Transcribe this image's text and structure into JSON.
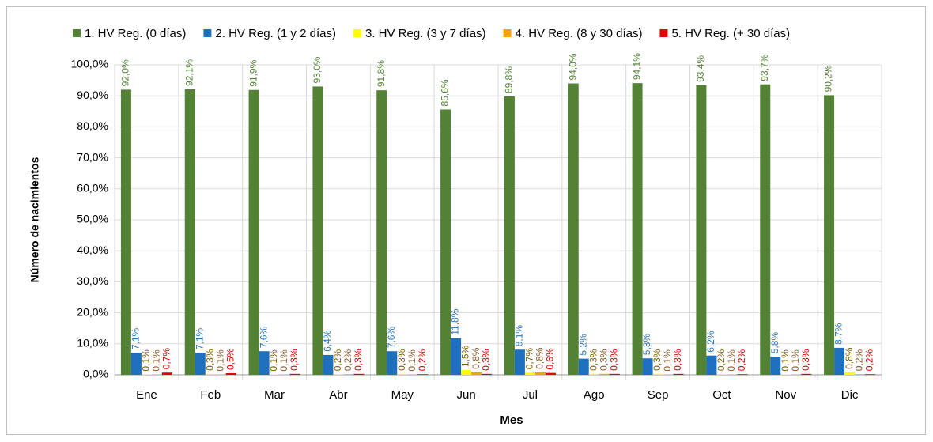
{
  "chart_data": {
    "type": "bar",
    "y_label": "Número de nacimientos",
    "x_label": "Mes",
    "categories": [
      "Ene",
      "Feb",
      "Mar",
      "Abr",
      "May",
      "Jun",
      "Jul",
      "Ago",
      "Sep",
      "Oct",
      "Nov",
      "Dic"
    ],
    "series": [
      {
        "name": "1. HV Reg. (0 días)",
        "color": "#548235",
        "label_color": "#548235",
        "values": [
          92.0,
          92.1,
          91.9,
          93.0,
          91.8,
          85.6,
          89.8,
          94.0,
          94.1,
          93.4,
          93.7,
          90.2
        ],
        "value_labels": [
          "92,0%",
          "92,1%",
          "91,9%",
          "93,0%",
          "91,8%",
          "85,6%",
          "89,8%",
          "94,0%",
          "94,1%",
          "93,4%",
          "93,7%",
          "90,2%"
        ]
      },
      {
        "name": "2. HV Reg. (1 y 2 días)",
        "color": "#1f6fbf",
        "label_color": "#2e75b6",
        "values": [
          7.1,
          7.1,
          7.6,
          6.4,
          7.6,
          11.8,
          8.1,
          5.2,
          5.3,
          6.2,
          5.8,
          8.7
        ],
        "value_labels": [
          "7,1%",
          "7,1%",
          "7,6%",
          "6,4%",
          "7,6%",
          "11,8%",
          "8,1%",
          "5,2%",
          "5,3%",
          "6,2%",
          "5,8%",
          "8,7%"
        ]
      },
      {
        "name": "3. HV Reg. (3 y 7 días)",
        "color": "#ffff00",
        "label_color": "#7f6000",
        "values": [
          0.1,
          0.3,
          0.1,
          0.2,
          0.3,
          1.5,
          0.7,
          0.3,
          0.3,
          0.2,
          0.1,
          0.8
        ],
        "value_labels": [
          "0,1%",
          "0,3%",
          "0,1%",
          "0,2%",
          "0,3%",
          "1,5%",
          "0,7%",
          "0,3%",
          "0,3%",
          "0,2%",
          "0,1%",
          "0,8%"
        ]
      },
      {
        "name": "4. HV Reg. (8 y 30 días)",
        "color": "#f5a300",
        "label_color": "#8b5a2b",
        "values": [
          0.1,
          0.1,
          0.1,
          0.2,
          0.1,
          0.8,
          0.8,
          0.3,
          0.1,
          0.1,
          0.1,
          0.2
        ],
        "value_labels": [
          "0,1%",
          "0,1%",
          "0,1%",
          "0,2%",
          "0,1%",
          "0,8%",
          "0,8%",
          "0,3%",
          "0,1%",
          "0,1%",
          "0,1%",
          "0,2%"
        ]
      },
      {
        "name": "5. HV Reg. (+ 30 días)",
        "color": "#e00000",
        "label_color": "#e00000",
        "values": [
          0.7,
          0.5,
          0.3,
          0.3,
          0.2,
          0.3,
          0.6,
          0.3,
          0.3,
          0.2,
          0.3,
          0.2
        ],
        "value_labels": [
          "0,7%",
          "0,5%",
          "0,3%",
          "0,3%",
          "0,2%",
          "0,3%",
          "0,6%",
          "0,3%",
          "0,3%",
          "0,2%",
          "0,3%",
          "0,2%"
        ]
      }
    ],
    "ylim": [
      0,
      100
    ],
    "yticks": [
      {
        "value": 0,
        "label": "0,0%"
      },
      {
        "value": 10,
        "label": "10,0%"
      },
      {
        "value": 20,
        "label": "20,0%"
      },
      {
        "value": 30,
        "label": "30,0%"
      },
      {
        "value": 40,
        "label": "40,0%"
      },
      {
        "value": 50,
        "label": "50,0%"
      },
      {
        "value": 60,
        "label": "60,0%"
      },
      {
        "value": 70,
        "label": "70,0%"
      },
      {
        "value": 80,
        "label": "80,0%"
      },
      {
        "value": 90,
        "label": "90,0%"
      },
      {
        "value": 100,
        "label": "100,0%"
      }
    ],
    "grid": true,
    "legend": "top"
  }
}
